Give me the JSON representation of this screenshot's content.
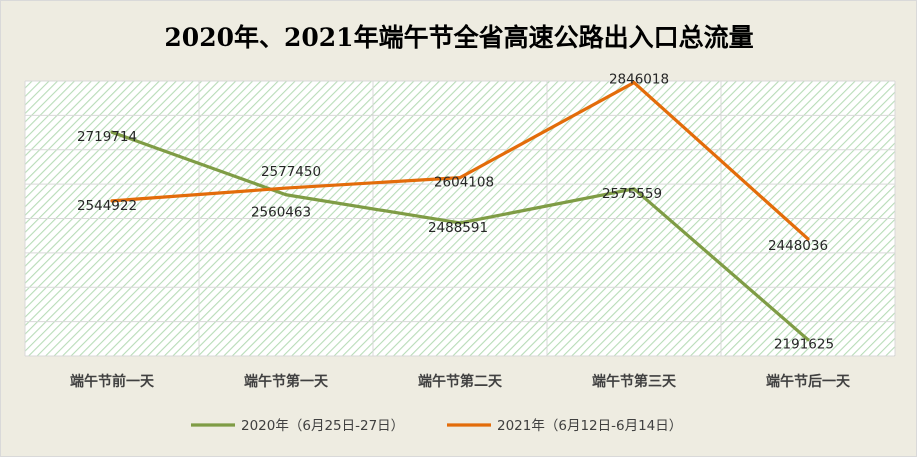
{
  "chart_data": {
    "type": "line",
    "title": "2020年、2021年端午节全省高速公路出入口总流量",
    "categories": [
      "端午节前一天",
      "端午节第一天",
      "端午节第二天",
      "端午节第三天",
      "端午节后一天"
    ],
    "series": [
      {
        "name": "2020年（6月25日-27日）",
        "color": "#7f9c45",
        "values": [
          2719714,
          2560463,
          2488591,
          2575559,
          2191625
        ],
        "labels": [
          "2719714",
          "2560463",
          "2488591",
          "2575559",
          "2191625"
        ]
      },
      {
        "name": "2021年（6月12日-6月14日）",
        "color": "#e36c0a",
        "values": [
          2544922,
          2577450,
          2604108,
          2846018,
          2448036
        ],
        "labels": [
          "2544922",
          "2577450",
          "2604108",
          "2846018",
          "2448036"
        ]
      }
    ],
    "ylim": [
      2150000,
      2850000
    ],
    "grid": true,
    "legend": "bottom",
    "plot_background": "hatched light green",
    "xlabel": "",
    "ylabel": ""
  }
}
